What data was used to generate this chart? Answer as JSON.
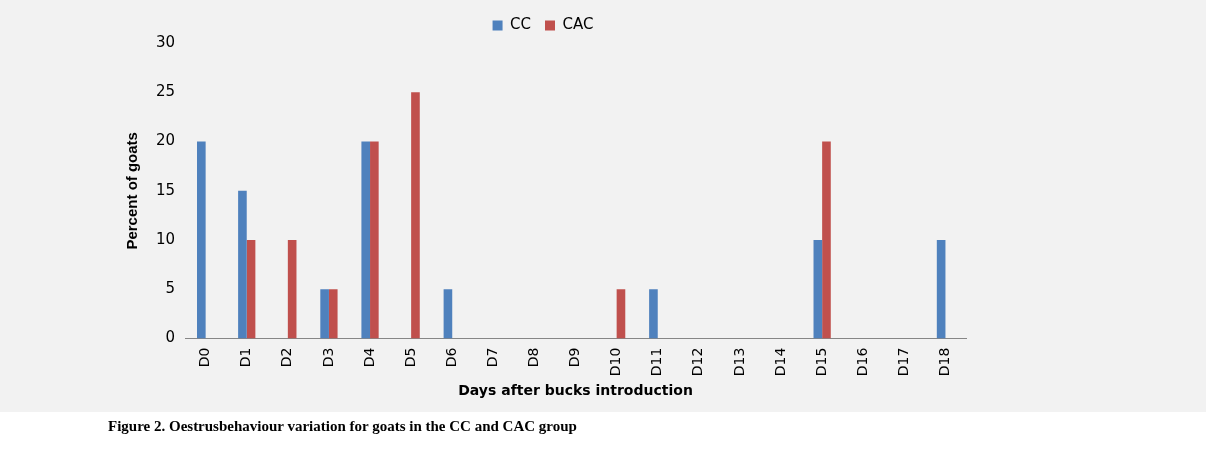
{
  "chart_data": {
    "type": "bar",
    "xlabel": "Days after bucks introduction",
    "ylabel": "Percent of goats",
    "categories": [
      "D0",
      "D1",
      "D2",
      "D3",
      "D4",
      "D5",
      "D6",
      "D7",
      "D8",
      "D9",
      "D10",
      "D11",
      "D12",
      "D13",
      "D14",
      "D15",
      "D16",
      "D17",
      "D18"
    ],
    "series": [
      {
        "name": "CC",
        "color": "#4f81bd",
        "values": [
          20,
          15,
          0,
          5,
          20,
          0,
          5,
          0,
          0,
          0,
          0,
          5,
          0,
          0,
          0,
          10,
          0,
          0,
          10
        ]
      },
      {
        "name": "CAC",
        "color": "#c0504d",
        "values": [
          0,
          10,
          10,
          5,
          20,
          25,
          0,
          0,
          0,
          0,
          5,
          0,
          0,
          0,
          0,
          20,
          0,
          0,
          0
        ]
      }
    ],
    "ylim": [
      0,
      30
    ],
    "yticks": [
      0,
      5,
      10,
      15,
      20,
      25,
      30
    ],
    "grid": false,
    "legend": "top",
    "annotations": [
      "Figure 2. Oestrusbehaviour variation for goats in the CC and CAC group"
    ]
  }
}
